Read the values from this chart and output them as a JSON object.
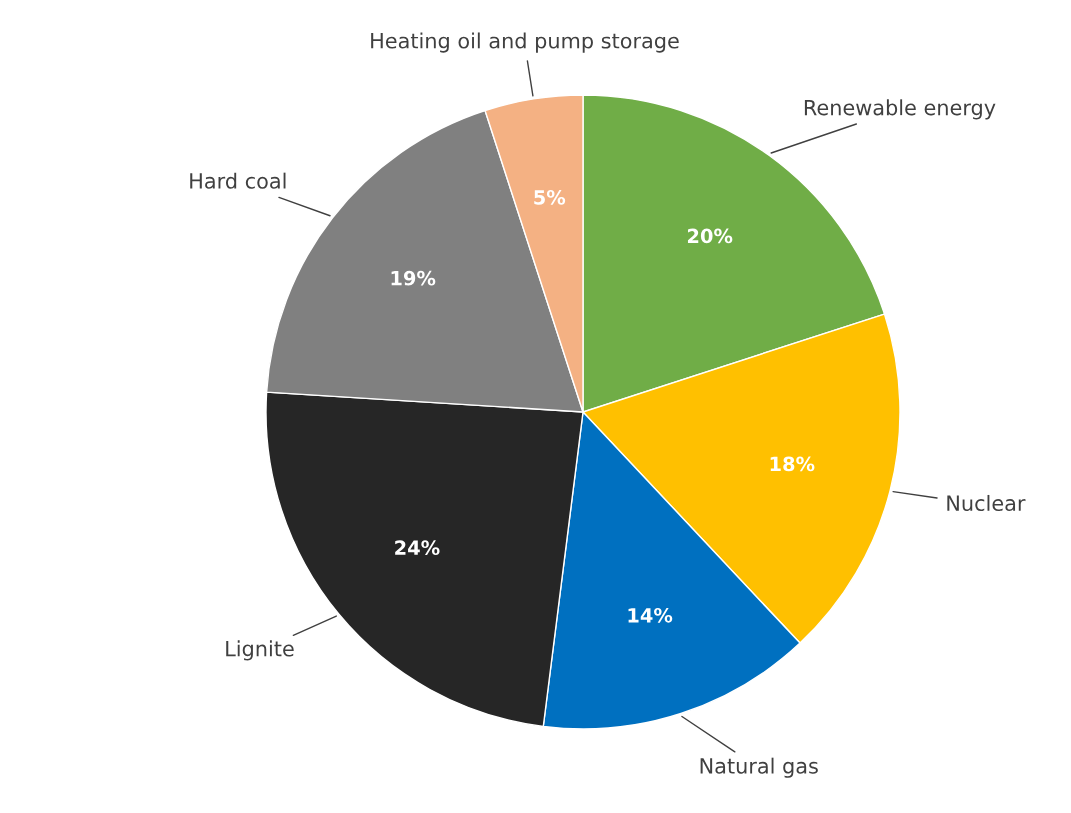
{
  "chart_data": {
    "type": "pie",
    "categories": [
      "Renewable energy",
      "Nuclear",
      "Natural gas",
      "Lignite",
      "Hard coal",
      "Heating oil and pump storage"
    ],
    "values": [
      20,
      18,
      14,
      24,
      19,
      5
    ],
    "value_labels": [
      "20%",
      "18%",
      "14%",
      "24%",
      "19%",
      "5%"
    ],
    "colors": [
      "#70ad47",
      "#ffc000",
      "#0070c0",
      "#262626",
      "#808080",
      "#f4b183"
    ]
  }
}
